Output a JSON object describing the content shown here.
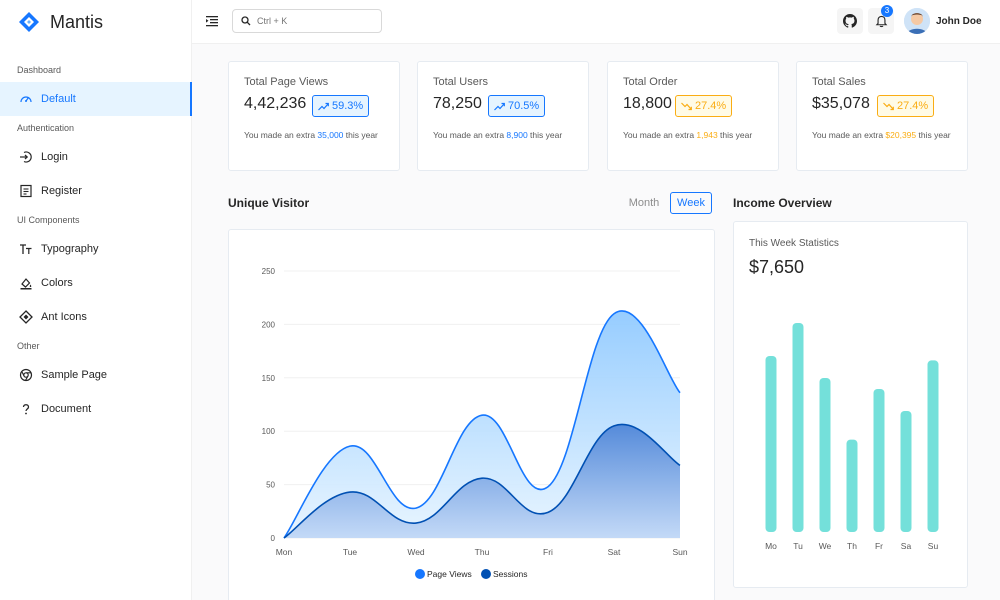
{
  "brand": {
    "name": "Mantis",
    "color": "#1677ff"
  },
  "sidebar": {
    "groups": [
      {
        "label": "Dashboard",
        "items": [
          {
            "label": "Default",
            "icon": "dashboard-icon",
            "active": true
          }
        ]
      },
      {
        "label": "Authentication",
        "items": [
          {
            "label": "Login",
            "icon": "login-icon"
          },
          {
            "label": "Register",
            "icon": "register-icon"
          }
        ]
      },
      {
        "label": "UI Components",
        "items": [
          {
            "label": "Typography",
            "icon": "typography-icon"
          },
          {
            "label": "Colors",
            "icon": "colors-icon"
          },
          {
            "label": "Ant Icons",
            "icon": "ant-icons-icon"
          }
        ]
      },
      {
        "label": "Other",
        "items": [
          {
            "label": "Sample Page",
            "icon": "chrome-icon"
          },
          {
            "label": "Document",
            "icon": "question-icon"
          }
        ]
      }
    ]
  },
  "header": {
    "search_placeholder": "Ctrl + K",
    "notification_count": "3",
    "user_name": "John Doe"
  },
  "stats": [
    {
      "title": "Total Page Views",
      "value": "4,42,236",
      "percent": "59.3%",
      "trend": "up",
      "note_prefix": "You made an extra ",
      "note_value": "35,000",
      "note_suffix": " this year"
    },
    {
      "title": "Total Users",
      "value": "78,250",
      "percent": "70.5%",
      "trend": "up",
      "note_prefix": "You made an extra ",
      "note_value": "8,900",
      "note_suffix": " this year"
    },
    {
      "title": "Total Order",
      "value": "18,800",
      "percent": "27.4%",
      "trend": "down",
      "note_prefix": "You made an extra ",
      "note_value": "1,943",
      "note_suffix": " this year"
    },
    {
      "title": "Total Sales",
      "value": "$35,078",
      "percent": "27.4%",
      "trend": "down",
      "note_prefix": "You made an extra ",
      "note_value": "$20,395",
      "note_suffix": " this year"
    }
  ],
  "colors": {
    "up": "#1677ff",
    "down": "#faad14",
    "teal": "#5cdbd3"
  },
  "visitor": {
    "title": "Unique Visitor",
    "toggle_month": "Month",
    "toggle_week": "Week",
    "selected": "Week"
  },
  "income": {
    "title": "Income Overview",
    "subtitle": "This Week Statistics",
    "amount": "$7,650"
  },
  "chart_data": [
    {
      "type": "area",
      "categories": [
        "Mon",
        "Tue",
        "Wed",
        "Thu",
        "Fri",
        "Sat",
        "Sun"
      ],
      "ylim": [
        0,
        250
      ],
      "yticks": [
        0,
        50,
        100,
        150,
        200,
        250
      ],
      "grid": true,
      "legend_position": "bottom",
      "series": [
        {
          "name": "Page Views",
          "values": [
            0,
            86,
            28,
            115,
            48,
            210,
            136
          ],
          "color": "#1677ff"
        },
        {
          "name": "Sessions",
          "values": [
            0,
            43,
            14,
            56,
            24,
            105,
            68
          ],
          "color": "#0050b3"
        }
      ]
    },
    {
      "type": "bar",
      "categories": [
        "Mo",
        "Tu",
        "We",
        "Th",
        "Fr",
        "Sa",
        "Su"
      ],
      "values": [
        80,
        95,
        70,
        42,
        65,
        55,
        78
      ],
      "ylim": [
        0,
        100
      ],
      "grid": false
    }
  ]
}
